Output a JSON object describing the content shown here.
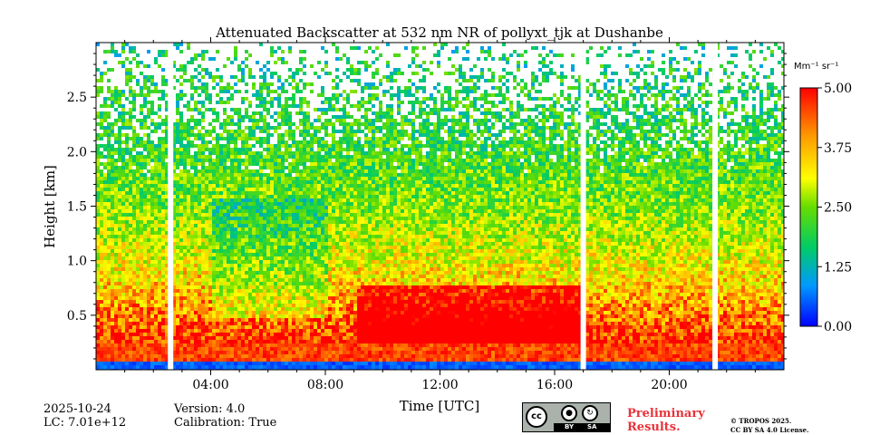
{
  "chart_data": {
    "type": "heatmap",
    "title": "Attenuated Backscatter at 532 nm NR of pollyxt_tjk at Dushanbe",
    "xlabel": "Time [UTC]",
    "ylabel": "Height [km]",
    "x_range_hours": [
      0,
      24
    ],
    "y_range_km": [
      0,
      3.0
    ],
    "x_ticks": [
      {
        "value": 4,
        "label": "04:00"
      },
      {
        "value": 8,
        "label": "08:00"
      },
      {
        "value": 12,
        "label": "12:00"
      },
      {
        "value": 16,
        "label": "16:00"
      },
      {
        "value": 20,
        "label": "20:00"
      }
    ],
    "y_ticks": [
      {
        "value": 0.5,
        "label": "0.5"
      },
      {
        "value": 1.0,
        "label": "1.0"
      },
      {
        "value": 1.5,
        "label": "1.5"
      },
      {
        "value": 2.0,
        "label": "2.0"
      },
      {
        "value": 2.5,
        "label": "2.5"
      }
    ],
    "colorbar": {
      "unit_label": "Mm⁻¹ sr⁻¹",
      "range": [
        0.0,
        5.0
      ],
      "ticks": [
        {
          "value": 0.0,
          "label": "0.00"
        },
        {
          "value": 1.25,
          "label": "1.25"
        },
        {
          "value": 2.5,
          "label": "2.50"
        },
        {
          "value": 3.75,
          "label": "3.75"
        },
        {
          "value": 5.0,
          "label": "5.00"
        }
      ],
      "colormap": [
        "#0000ff",
        "#0099ff",
        "#00cc66",
        "#66dd00",
        "#ffff00",
        "#ff9900",
        "#ff0000"
      ]
    },
    "data_gaps_hours": [
      2.6,
      17.0,
      21.6
    ],
    "grid": false
  },
  "meta": {
    "date": "2025-10-24",
    "lc": "LC: 7.01e+12",
    "version": "Version: 4.0",
    "calibration": "Calibration: True"
  },
  "footer": {
    "cc_label": "cc",
    "by_label": "BY",
    "sa_label": "SA",
    "preliminary_line1": "Preliminary",
    "preliminary_line2": "Results.",
    "license_line1": "© TROPOS 2025.",
    "license_line2": "CC BY SA 4.0 License."
  },
  "colors": {
    "preliminary": "#e8333a",
    "cc_badge": "#aab2ab"
  }
}
